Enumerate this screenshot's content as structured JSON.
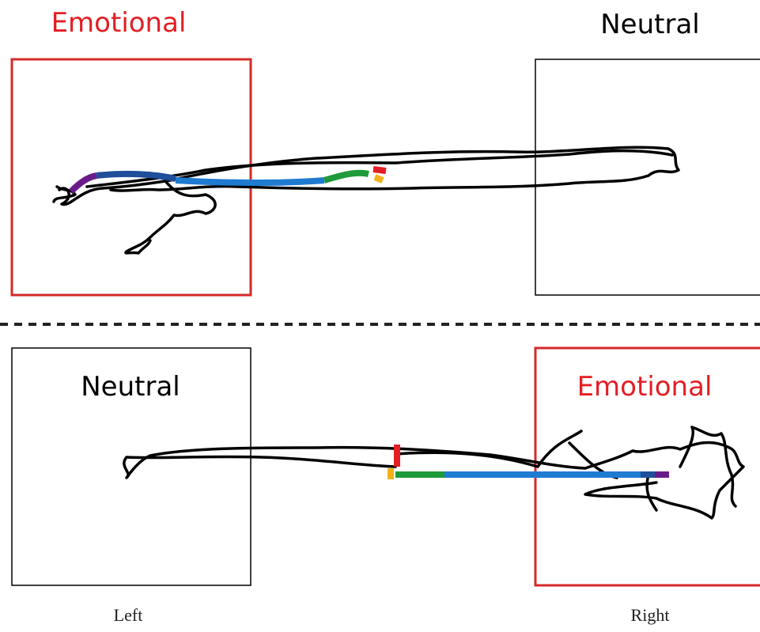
{
  "top": {
    "left_label": "Emotional",
    "right_label": "Neutral"
  },
  "bottom": {
    "left_label": "Neutral",
    "right_label": "Emotional"
  },
  "footer": {
    "left": "Left",
    "right": "Right"
  }
}
